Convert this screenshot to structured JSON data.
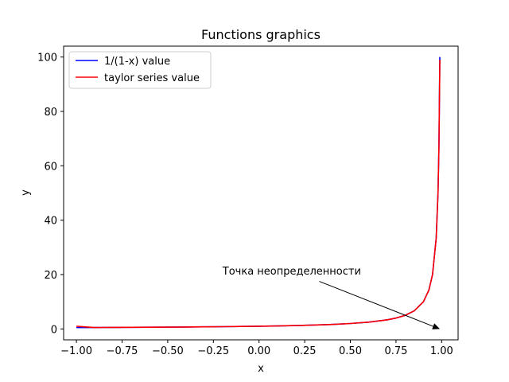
{
  "chart_data": {
    "type": "line",
    "title": "Functions graphics",
    "xlabel": "x",
    "ylabel": "y",
    "xlim": [
      -1.07,
      1.09
    ],
    "ylim": [
      -4.0,
      104.0
    ],
    "x_ticks": [
      -1.0,
      -0.75,
      -0.5,
      -0.25,
      0.0,
      0.25,
      0.5,
      0.75,
      1.0
    ],
    "x_tick_labels": [
      "−1.00",
      "−0.75",
      "−0.50",
      "−0.25",
      "0.00",
      "0.25",
      "0.50",
      "0.75",
      "1.00"
    ],
    "y_ticks": [
      0,
      20,
      40,
      60,
      80,
      100
    ],
    "y_tick_labels": [
      "0",
      "20",
      "40",
      "60",
      "80",
      "100"
    ],
    "grid": false,
    "legend_position": "top-left",
    "x": [
      -1.0,
      -0.9,
      -0.8,
      -0.7,
      -0.6,
      -0.5,
      -0.4,
      -0.3,
      -0.2,
      -0.1,
      0.0,
      0.1,
      0.2,
      0.3,
      0.4,
      0.5,
      0.6,
      0.7,
      0.75,
      0.8,
      0.85,
      0.9,
      0.93,
      0.95,
      0.97,
      0.98,
      0.985,
      0.99
    ],
    "series": [
      {
        "name": "1/(1-x) value",
        "color": "#0000ff",
        "values": [
          0.5,
          0.526,
          0.556,
          0.588,
          0.625,
          0.667,
          0.714,
          0.769,
          0.833,
          0.909,
          1.0,
          1.111,
          1.25,
          1.429,
          1.667,
          2.0,
          2.5,
          3.333,
          4.0,
          5.0,
          6.667,
          10.0,
          14.29,
          20.0,
          33.33,
          50.0,
          66.67,
          100.0
        ]
      },
      {
        "name": "taylor series value",
        "color": "#ff0000",
        "values": [
          1.0,
          0.526,
          0.556,
          0.588,
          0.625,
          0.667,
          0.714,
          0.769,
          0.833,
          0.909,
          1.0,
          1.111,
          1.25,
          1.429,
          1.667,
          2.0,
          2.5,
          3.333,
          4.0,
          5.0,
          6.667,
          10.0,
          14.29,
          20.0,
          33.33,
          50.0,
          66.67,
          99.0
        ]
      }
    ],
    "annotations": [
      {
        "text": "Точка неопределенности",
        "text_x": -0.2,
        "text_y": 20,
        "arrow_from_x": 0.33,
        "arrow_from_y": 17.5,
        "arrow_to_x": 0.99,
        "arrow_to_y": 0
      }
    ]
  }
}
